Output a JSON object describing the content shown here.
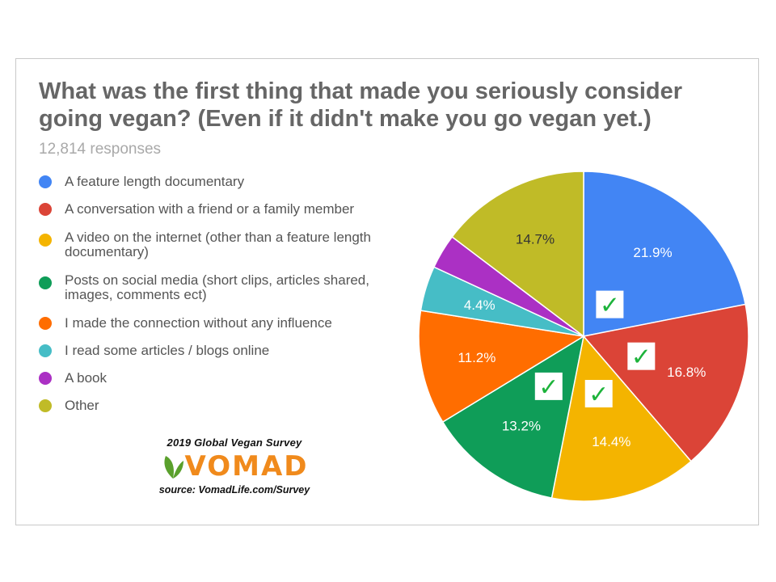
{
  "chart_data": {
    "type": "pie",
    "title": "What was the first thing that made you seriously consider going vegan? (Even if it didn't make you go vegan yet.)",
    "subtitle": "12,814 responses",
    "legend_position": "left",
    "slices": [
      {
        "label": "A feature length documentary",
        "value": 21.9,
        "value_label": "21.9%",
        "color": "#4285f4",
        "checked": true
      },
      {
        "label": "A conversation with a friend or a family member",
        "value": 16.8,
        "value_label": "16.8%",
        "color": "#db4437",
        "checked": true
      },
      {
        "label": "A video on the internet (other than a feature length documentary)",
        "value": 14.4,
        "value_label": "14.4%",
        "color": "#f4b400",
        "checked": true
      },
      {
        "label": "Posts on social media (short clips, articles shared, images, comments ect)",
        "value": 13.2,
        "value_label": "13.2%",
        "color": "#0f9d58",
        "checked": true
      },
      {
        "label": "I made the connection without any influence",
        "value": 11.2,
        "value_label": "11.2%",
        "color": "#ff6d00",
        "checked": false
      },
      {
        "label": "I read some articles / blogs online",
        "value": 4.4,
        "value_label": "4.4%",
        "color": "#46bdc6",
        "checked": false
      },
      {
        "label": "A book",
        "value": 3.4,
        "value_label": "",
        "color": "#ab30c4",
        "checked": false
      },
      {
        "label": "Other",
        "value": 14.7,
        "value_label": "14.7%",
        "color": "#c0bb27",
        "checked": false
      }
    ]
  },
  "branding": {
    "survey": "2019 Global Vegan Survey",
    "logo": "VOMAD",
    "source": "source: VomadLife.com/Survey",
    "logo_color": "#f08a1c",
    "leaf_color": "#5aa02c"
  },
  "check_icon": {
    "symbol": "✓",
    "color": "#1db33b"
  }
}
